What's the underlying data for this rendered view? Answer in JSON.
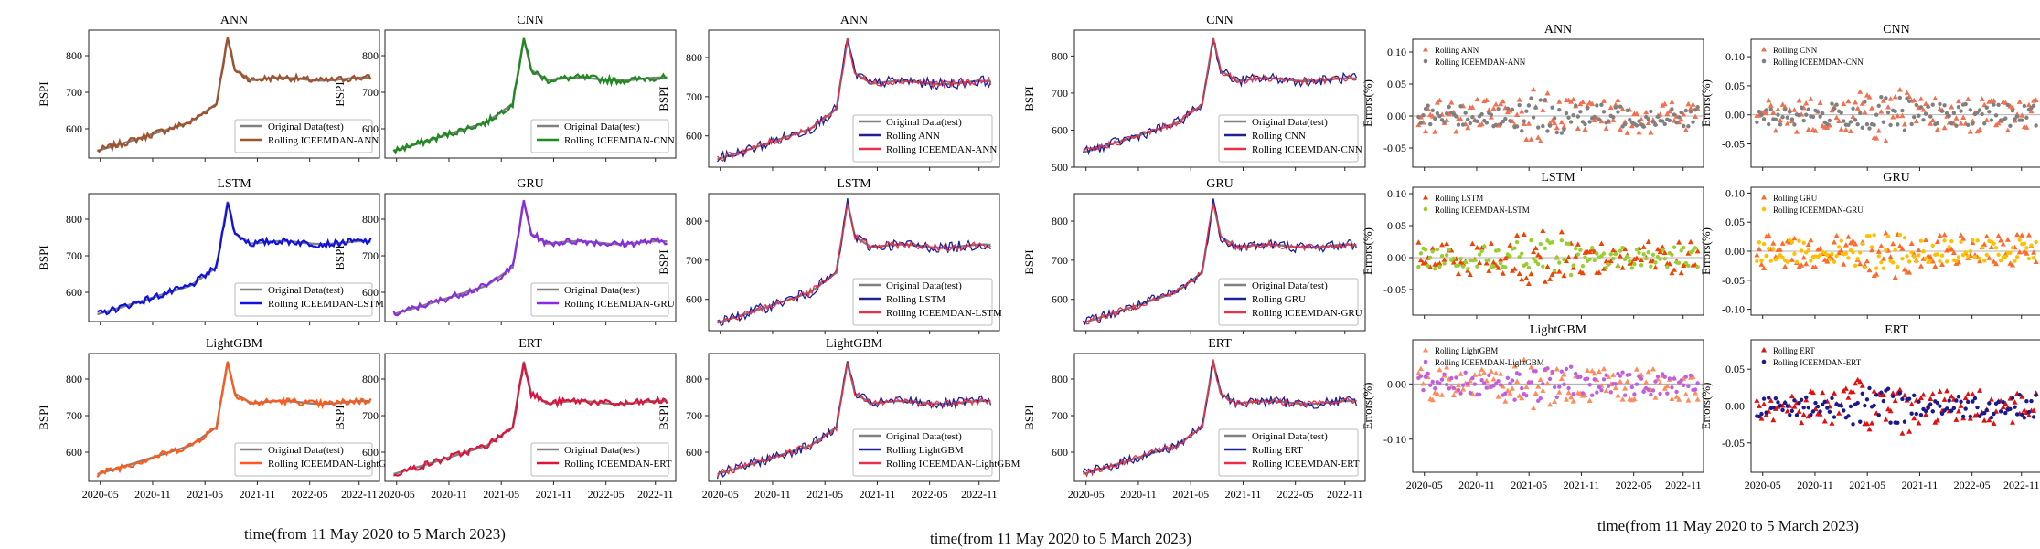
{
  "xlabels": [
    "time(from 11 May 2020 to 5 March 2023)",
    "time(from 11 May 2020 to 5 March 2023)",
    "time(from 11 May 2020 to 5 March 2023)"
  ],
  "colors": {
    "original": "#808080",
    "ANN": "#a0522d",
    "CNN": "#1f8a1f",
    "LSTM": "#1010e0",
    "GRU": "#8a2be2",
    "LightGBM": "#ff5a1a",
    "ERT": "#dc143c",
    "rolling_blue": "#1f1f9a",
    "iceemdan_red": "#e8304a"
  },
  "chart_data": [
    {
      "type": "line",
      "group": "A",
      "title": "ANN",
      "ylabel": "BSPI",
      "ylim": [
        520,
        870
      ],
      "yticks": [
        600,
        700,
        800
      ],
      "xticks": [],
      "series": [
        {
          "name": "Original Data(test)",
          "color": "#808080"
        },
        {
          "name": "Rolling ICEEMDAN-ANN",
          "color": "#a0522d"
        }
      ]
    },
    {
      "type": "line",
      "group": "A",
      "title": "CNN",
      "ylabel": "BSPI",
      "ylim": [
        520,
        870
      ],
      "yticks": [
        600,
        700,
        800
      ],
      "xticks": [],
      "series": [
        {
          "name": "Original Data(test)",
          "color": "#808080"
        },
        {
          "name": "Rolling ICEEMDAN-CNN",
          "color": "#1f8a1f"
        }
      ]
    },
    {
      "type": "line",
      "group": "A",
      "title": "LSTM",
      "ylabel": "BSPI",
      "ylim": [
        520,
        870
      ],
      "yticks": [
        600,
        700,
        800
      ],
      "xticks": [],
      "series": [
        {
          "name": "Original Data(test)",
          "color": "#808080"
        },
        {
          "name": "Rolling ICEEMDAN-LSTM",
          "color": "#1010e0"
        }
      ]
    },
    {
      "type": "line",
      "group": "A",
      "title": "GRU",
      "ylabel": "BSPI",
      "ylim": [
        520,
        870
      ],
      "yticks": [
        600,
        700,
        800
      ],
      "xticks": [],
      "series": [
        {
          "name": "Original Data(test)",
          "color": "#808080"
        },
        {
          "name": "Rolling ICEEMDAN-GRU",
          "color": "#8a2be2"
        }
      ]
    },
    {
      "type": "line",
      "group": "A",
      "title": "LightGBM",
      "ylabel": "BSPI",
      "ylim": [
        520,
        870
      ],
      "yticks": [
        600,
        700,
        800
      ],
      "xticks": [
        "2020-05",
        "2020-11",
        "2021-05",
        "2021-11",
        "2022-05",
        "2022-11"
      ],
      "series": [
        {
          "name": "Original Data(test)",
          "color": "#808080"
        },
        {
          "name": "Rolling ICEEMDAN-LightGBM",
          "color": "#ff5a1a"
        }
      ]
    },
    {
      "type": "line",
      "group": "A",
      "title": "ERT",
      "ylabel": "BSPI",
      "ylim": [
        520,
        870
      ],
      "yticks": [
        600,
        700,
        800
      ],
      "xticks": [
        "2020-05",
        "2020-11",
        "2021-05",
        "2021-11",
        "2022-05",
        "2022-11"
      ],
      "series": [
        {
          "name": "Original Data(test)",
          "color": "#808080"
        },
        {
          "name": "Rolling ICEEMDAN-ERT",
          "color": "#dc143c"
        }
      ]
    },
    {
      "type": "line",
      "group": "B",
      "title": "ANN",
      "ylabel": "BSPI",
      "ylim": [
        520,
        870
      ],
      "yticks": [
        600,
        700,
        800
      ],
      "xticks": [],
      "series": [
        {
          "name": "Original Data(test)",
          "color": "#808080"
        },
        {
          "name": "Rolling ANN",
          "color": "#1f1f9a"
        },
        {
          "name": "Rolling ICEEMDAN-ANN",
          "color": "#e8304a"
        }
      ]
    },
    {
      "type": "line",
      "group": "B",
      "title": "CNN",
      "ylabel": "BSPI",
      "ylim": [
        500,
        870
      ],
      "yticks": [
        500,
        600,
        700,
        800
      ],
      "xticks": [],
      "series": [
        {
          "name": "Original Data(test)",
          "color": "#808080"
        },
        {
          "name": "Rolling CNN",
          "color": "#1f1f9a"
        },
        {
          "name": "Rolling ICEEMDAN-CNN",
          "color": "#e8304a"
        }
      ]
    },
    {
      "type": "line",
      "group": "B",
      "title": "LSTM",
      "ylabel": "BSPI",
      "ylim": [
        520,
        870
      ],
      "yticks": [
        600,
        700,
        800
      ],
      "xticks": [],
      "series": [
        {
          "name": "Original Data(test)",
          "color": "#808080"
        },
        {
          "name": "Rolling LSTM",
          "color": "#1f1f9a"
        },
        {
          "name": "Rolling ICEEMDAN-LSTM",
          "color": "#e8304a"
        }
      ]
    },
    {
      "type": "line",
      "group": "B",
      "title": "GRU",
      "ylabel": "BSPI",
      "ylim": [
        520,
        870
      ],
      "yticks": [
        600,
        700,
        800
      ],
      "xticks": [],
      "series": [
        {
          "name": "Original Data(test)",
          "color": "#808080"
        },
        {
          "name": "Rolling GRU",
          "color": "#1f1f9a"
        },
        {
          "name": "Rolling ICEEMDAN-GRU",
          "color": "#e8304a"
        }
      ]
    },
    {
      "type": "line",
      "group": "B",
      "title": "LightGBM",
      "ylabel": "BSPI",
      "ylim": [
        520,
        870
      ],
      "yticks": [
        600,
        700,
        800
      ],
      "xticks": [
        "2020-05",
        "2020-11",
        "2021-05",
        "2021-11",
        "2022-05",
        "2022-11"
      ],
      "series": [
        {
          "name": "Original Data(test)",
          "color": "#808080"
        },
        {
          "name": "Rolling LightGBM",
          "color": "#1f1f9a"
        },
        {
          "name": "Rolling ICEEMDAN-LightGBM",
          "color": "#e8304a"
        }
      ]
    },
    {
      "type": "line",
      "group": "B",
      "title": "ERT",
      "ylabel": "BSPI",
      "ylim": [
        520,
        870
      ],
      "yticks": [
        600,
        700,
        800
      ],
      "xticks": [
        "2020-05",
        "2020-11",
        "2021-05",
        "2021-11",
        "2022-05",
        "2022-11"
      ],
      "series": [
        {
          "name": "Original Data(test)",
          "color": "#808080"
        },
        {
          "name": "Rolling ERT",
          "color": "#1f1f9a"
        },
        {
          "name": "Rolling ICEEMDAN-ERT",
          "color": "#e8304a"
        }
      ]
    },
    {
      "type": "scatter",
      "group": "C",
      "title": "ANN",
      "ylabel": "Errors(%)",
      "ylim": [
        -0.08,
        0.12
      ],
      "yticks": [
        -0.05,
        0.0,
        0.05,
        0.1
      ],
      "xticks": [],
      "series": [
        {
          "name": "Rolling ANN",
          "color": "#f07050",
          "marker": "triangle"
        },
        {
          "name": "Rolling ICEEMDAN-ANN",
          "color": "#808080",
          "marker": "circle"
        }
      ]
    },
    {
      "type": "scatter",
      "group": "C",
      "title": "CNN",
      "ylabel": "Errors(%)",
      "ylim": [
        -0.09,
        0.13
      ],
      "yticks": [
        -0.05,
        0.0,
        0.05,
        0.1
      ],
      "xticks": [],
      "series": [
        {
          "name": "Rolling CNN",
          "color": "#f07050",
          "marker": "triangle"
        },
        {
          "name": "Rolling ICEEMDAN-CNN",
          "color": "#808080",
          "marker": "circle"
        }
      ]
    },
    {
      "type": "scatter",
      "group": "C",
      "title": "LSTM",
      "ylabel": "Errors(%)",
      "ylim": [
        -0.09,
        0.11
      ],
      "yticks": [
        -0.05,
        0.0,
        0.05,
        0.1
      ],
      "xticks": [],
      "series": [
        {
          "name": "Rolling LSTM",
          "color": "#ee4400",
          "marker": "triangle"
        },
        {
          "name": "Rolling ICEEMDAN-LSTM",
          "color": "#9acd32",
          "marker": "circle"
        }
      ]
    },
    {
      "type": "scatter",
      "group": "C",
      "title": "GRU",
      "ylabel": "Errors(%)",
      "ylim": [
        -0.11,
        0.11
      ],
      "yticks": [
        -0.1,
        -0.05,
        0.0,
        0.05,
        0.1
      ],
      "xticks": [],
      "series": [
        {
          "name": "Rolling GRU",
          "color": "#ff6a2a",
          "marker": "triangle"
        },
        {
          "name": "Rolling ICEEMDAN-GRU",
          "color": "#ffc000",
          "marker": "circle"
        }
      ]
    },
    {
      "type": "scatter",
      "group": "C",
      "title": "LightGBM",
      "ylabel": "Errors(%)",
      "ylim": [
        -0.16,
        0.08
      ],
      "yticks": [
        -0.1,
        0.0
      ],
      "xticks": [
        "2020-05",
        "2020-11",
        "2021-05",
        "2021-11",
        "2022-05",
        "2022-11"
      ],
      "series": [
        {
          "name": "Rolling LightGBM",
          "color": "#ff8c5a",
          "marker": "triangle"
        },
        {
          "name": "Rolling ICEEMDAN-LightGBM",
          "color": "#c060e0",
          "marker": "circle"
        }
      ]
    },
    {
      "type": "scatter",
      "group": "C",
      "title": "ERT",
      "ylabel": "Errors(%)",
      "ylim": [
        -0.09,
        0.09
      ],
      "yticks": [
        -0.05,
        0.0,
        0.05
      ],
      "xticks": [
        "2020-05",
        "2020-11",
        "2021-05",
        "2021-11",
        "2022-05",
        "2022-11"
      ],
      "series": [
        {
          "name": "Rolling ERT",
          "color": "#e01010",
          "marker": "triangle"
        },
        {
          "name": "Rolling ICEEMDAN-ERT",
          "color": "#1a1a8c",
          "marker": "circle"
        }
      ]
    }
  ]
}
